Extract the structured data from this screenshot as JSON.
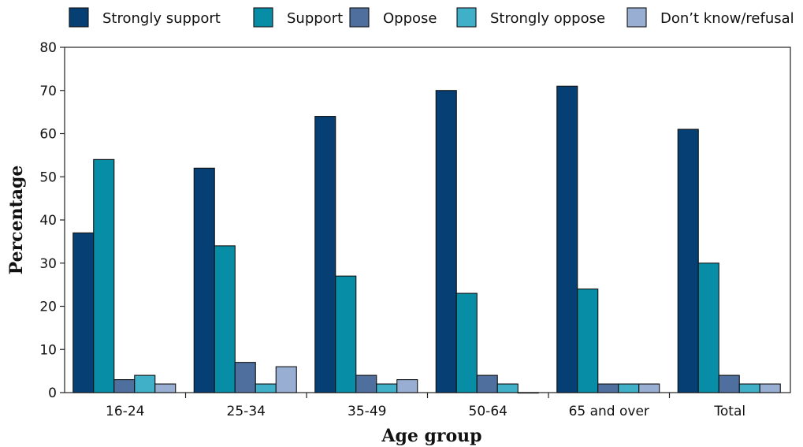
{
  "chart_data": {
    "type": "bar",
    "title": "",
    "xlabel": "Age group",
    "ylabel": "Percentage",
    "ylim": [
      0,
      80
    ],
    "yticks": [
      0,
      10,
      20,
      30,
      40,
      50,
      60,
      70,
      80
    ],
    "grid": false,
    "legend_position": "top",
    "categories": [
      "16-24",
      "25-34",
      "35-49",
      "50-64",
      "65 and over",
      "Total"
    ],
    "series": [
      {
        "name": "Strongly support",
        "color": "#063f73",
        "values": [
          37,
          52,
          64,
          70,
          71,
          61
        ]
      },
      {
        "name": "Support",
        "color": "#078ea6",
        "values": [
          54,
          34,
          27,
          23,
          24,
          30
        ]
      },
      {
        "name": "Oppose",
        "color": "#4f6f9f",
        "values": [
          3,
          7,
          4,
          4,
          2,
          4
        ]
      },
      {
        "name": "Strongly oppose",
        "color": "#3fb0c8",
        "values": [
          4,
          2,
          2,
          2,
          2,
          2
        ]
      },
      {
        "name": "Don’t know/refusal",
        "color": "#98aed3",
        "values": [
          2,
          6,
          3,
          0,
          2,
          2
        ]
      }
    ]
  }
}
